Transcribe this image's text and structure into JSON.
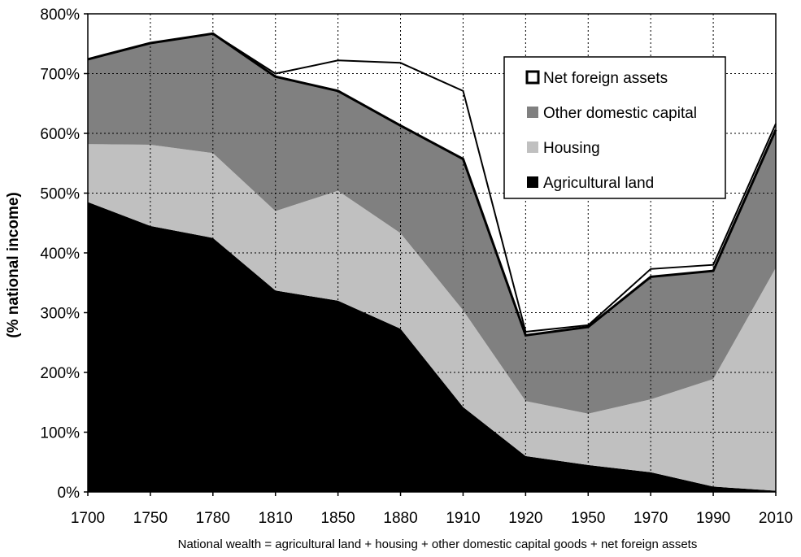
{
  "chart_data": {
    "type": "area",
    "title": "",
    "xlabel": "National wealth = agricultural land + housing + other domestic capital goods + net foreign assets",
    "ylabel": "(% national income)",
    "x": [
      "1700",
      "1750",
      "1780",
      "1810",
      "1850",
      "1880",
      "1910",
      "1920",
      "1950",
      "1970",
      "1990",
      "2010"
    ],
    "ylim": [
      0,
      800
    ],
    "yticks": [
      0,
      100,
      200,
      300,
      400,
      500,
      600,
      700,
      800
    ],
    "ytick_labels": [
      "0%",
      "100%",
      "200%",
      "300%",
      "400%",
      "500%",
      "600%",
      "700%",
      "800%"
    ],
    "stacked": true,
    "grid": "dotted",
    "legend_position": "top-right",
    "series": [
      {
        "name": "Agricultural land",
        "color": "#000000",
        "values": [
          485,
          445,
          425,
          337,
          320,
          273,
          142,
          60,
          45,
          33,
          9,
          2
        ]
      },
      {
        "name": "Housing",
        "color": "#c0c0c0",
        "values": [
          97,
          136,
          142,
          133,
          184,
          160,
          162,
          92,
          86,
          122,
          180,
          373
        ]
      },
      {
        "name": "Other domestic capital",
        "color": "#808080",
        "values": [
          142,
          170,
          200,
          225,
          167,
          180,
          253,
          110,
          145,
          205,
          181,
          231
        ]
      },
      {
        "name": "Net foreign assets",
        "color": "#ffffff",
        "values": [
          0,
          0,
          0,
          5,
          51,
          105,
          114,
          6,
          3,
          13,
          10,
          10
        ]
      }
    ]
  }
}
